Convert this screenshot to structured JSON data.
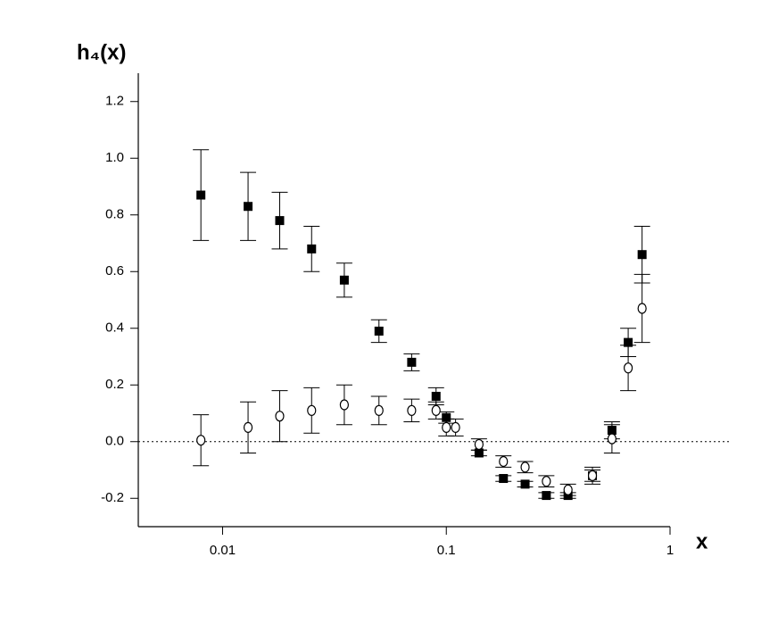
{
  "chart_data": {
    "type": "scatter",
    "xlabel": "x",
    "ylabel": "h₄(x)",
    "xscale": "log",
    "xlim": [
      0.0042,
      1
    ],
    "xticks": [
      0.01,
      0.1,
      1
    ],
    "ylim": [
      -0.3,
      1.3
    ],
    "yticks": [
      -0.2,
      {
        "value": 0,
        "label": "0.0"
      },
      0.2,
      0.4,
      0.6,
      0.8,
      {
        "value": 1,
        "label": "1.0"
      },
      1.2
    ],
    "reference_line": 0,
    "series": [
      {
        "marker": "square",
        "color": "#000000",
        "x": [
          0.008,
          0.013,
          0.018,
          0.025,
          0.035,
          0.05,
          0.07,
          0.09,
          0.1,
          0.14,
          0.18,
          0.225,
          0.28,
          0.35,
          0.45,
          0.55,
          0.65,
          0.75
        ],
        "values": [
          0.87,
          0.83,
          0.78,
          0.68,
          0.57,
          0.39,
          0.28,
          0.16,
          0.085,
          -0.04,
          -0.13,
          -0.15,
          -0.19,
          -0.19,
          -0.12,
          0.04,
          0.35,
          0.66
        ],
        "errors": [
          0.16,
          0.12,
          0.1,
          0.08,
          0.06,
          0.04,
          0.03,
          0.03,
          0.02,
          0.01,
          0.01,
          0.01,
          0.01,
          0.01,
          0.02,
          0.03,
          0.05,
          0.1
        ]
      },
      {
        "marker": "circle",
        "color": "#000000",
        "x": [
          0.008,
          0.013,
          0.018,
          0.025,
          0.035,
          0.05,
          0.07,
          0.09,
          0.1,
          0.11,
          0.14,
          0.18,
          0.225,
          0.28,
          0.35,
          0.45,
          0.55,
          0.65,
          0.75
        ],
        "values": [
          0.005,
          0.05,
          0.09,
          0.11,
          0.13,
          0.11,
          0.11,
          0.11,
          0.05,
          0.05,
          -0.01,
          -0.07,
          -0.09,
          -0.14,
          -0.17,
          -0.12,
          0.01,
          0.26,
          0.47
        ],
        "errors": [
          0.09,
          0.09,
          0.09,
          0.08,
          0.07,
          0.05,
          0.04,
          0.03,
          0.03,
          0.03,
          0.02,
          0.02,
          0.02,
          0.02,
          0.02,
          0.03,
          0.05,
          0.08,
          0.12
        ]
      }
    ]
  }
}
